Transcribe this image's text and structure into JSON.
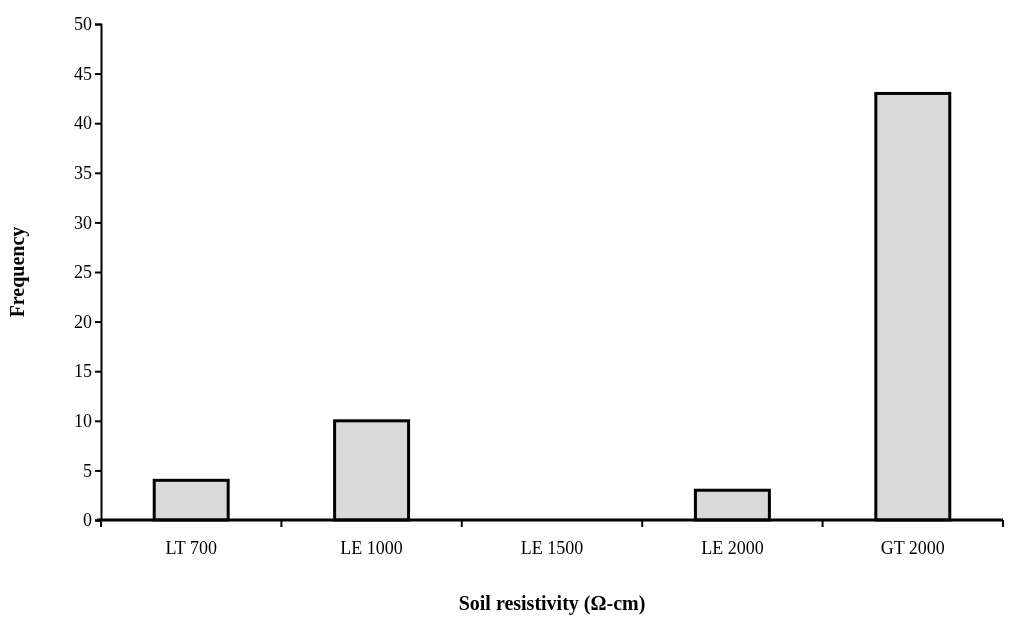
{
  "chart_data": {
    "type": "bar",
    "xlabel": "Soil resistivity (Ω-cm)",
    "ylabel": "Frequency",
    "categories": [
      "LT 700",
      "LE 1000",
      "LE 1500",
      "LE 2000",
      "GT 2000"
    ],
    "values": [
      4,
      10,
      0,
      3,
      43
    ],
    "color": "#d9d9d9",
    "ylim": [
      0,
      50
    ],
    "yticks": [
      0,
      5,
      10,
      15,
      20,
      25,
      30,
      35,
      40,
      45,
      50
    ],
    "grid": false
  }
}
